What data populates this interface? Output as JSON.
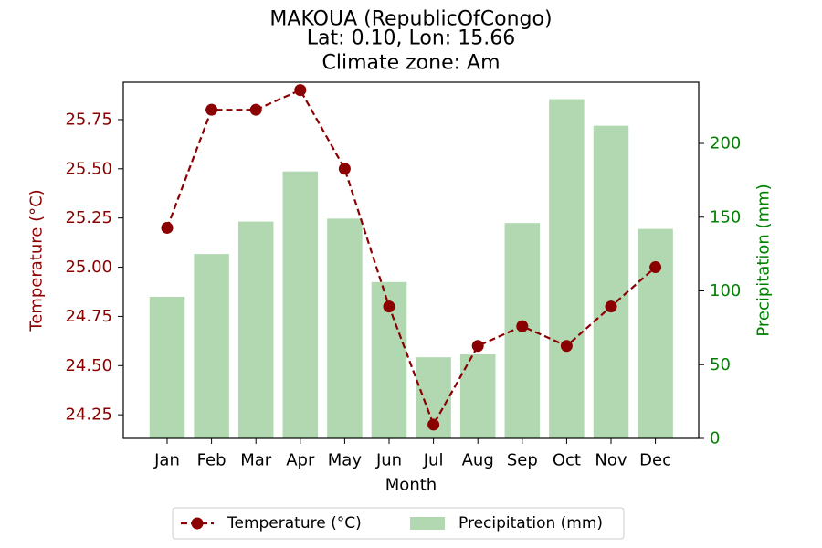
{
  "chart_data": {
    "type": "bar+line",
    "title_lines": [
      "MAKOUA (RepublicOfCongo)",
      "Lat: 0.10, Lon: 15.66",
      "Climate zone: Am"
    ],
    "xlabel": "Month",
    "categories": [
      "Jan",
      "Feb",
      "Mar",
      "Apr",
      "May",
      "Jun",
      "Jul",
      "Aug",
      "Sep",
      "Oct",
      "Nov",
      "Dec"
    ],
    "series": [
      {
        "name": "Temperature (°C)",
        "type": "line",
        "axis": "left",
        "color": "#8b0000",
        "values": [
          25.2,
          25.8,
          25.8,
          25.9,
          25.5,
          24.8,
          24.2,
          24.6,
          24.7,
          24.6,
          24.8,
          25.0
        ]
      },
      {
        "name": "Precipitation (mm)",
        "type": "bar",
        "axis": "right",
        "color": "#b2d8b2",
        "values": [
          96,
          125,
          147,
          181,
          149,
          106,
          55,
          57,
          146,
          230,
          212,
          142
        ]
      }
    ],
    "y_left": {
      "label": "Temperature (°C)",
      "color": "#8b0000",
      "ticks": [
        24.25,
        24.5,
        24.75,
        25.0,
        25.25,
        25.5,
        25.75
      ],
      "tick_labels": [
        "24.25",
        "24.50",
        "24.75",
        "25.00",
        "25.25",
        "25.50",
        "25.75"
      ],
      "range": [
        24.13,
        25.94
      ]
    },
    "y_right": {
      "label": "Precipitation (mm)",
      "color": "#008000",
      "ticks": [
        0,
        50,
        100,
        150,
        200
      ],
      "tick_labels": [
        "0",
        "50",
        "100",
        "150",
        "200"
      ],
      "range": [
        0,
        241.5
      ]
    },
    "grid": false,
    "legend_position": "bottom-center"
  }
}
